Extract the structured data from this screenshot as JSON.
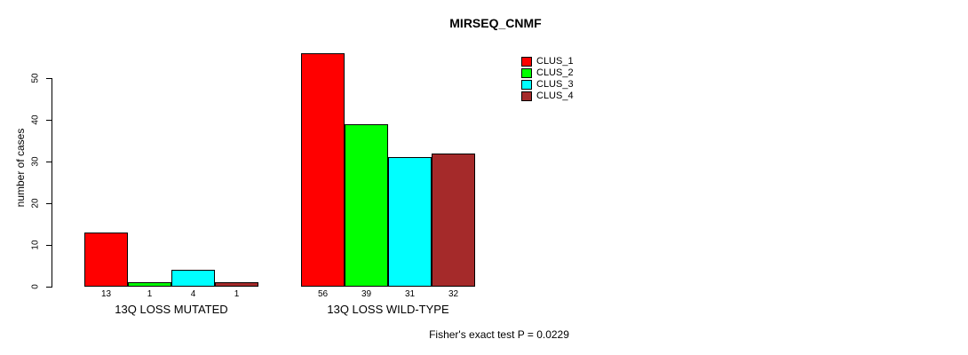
{
  "chart_data": {
    "type": "bar",
    "title": "MIRSEQ_CNMF",
    "ylabel": "number of cases",
    "yticks": [
      0,
      10,
      20,
      30,
      40,
      50
    ],
    "ylim": [
      0,
      56
    ],
    "grid": false,
    "legend_position": "top-right",
    "categories": [
      "13Q LOSS MUTATED",
      "13Q LOSS WILD-TYPE"
    ],
    "series": [
      {
        "name": "CLUS_1",
        "color": "#FF0000",
        "values": [
          13,
          56
        ]
      },
      {
        "name": "CLUS_2",
        "color": "#00FF00",
        "values": [
          1,
          39
        ]
      },
      {
        "name": "CLUS_3",
        "color": "#00FFFF",
        "values": [
          4,
          31
        ]
      },
      {
        "name": "CLUS_4",
        "color": "#A52A2A",
        "values": [
          1,
          32
        ]
      }
    ],
    "annotation": "Fisher's exact test P = 0.0229"
  },
  "colors": {
    "axis": "#000000",
    "text": "#000000",
    "background": "#FFFFFF"
  }
}
